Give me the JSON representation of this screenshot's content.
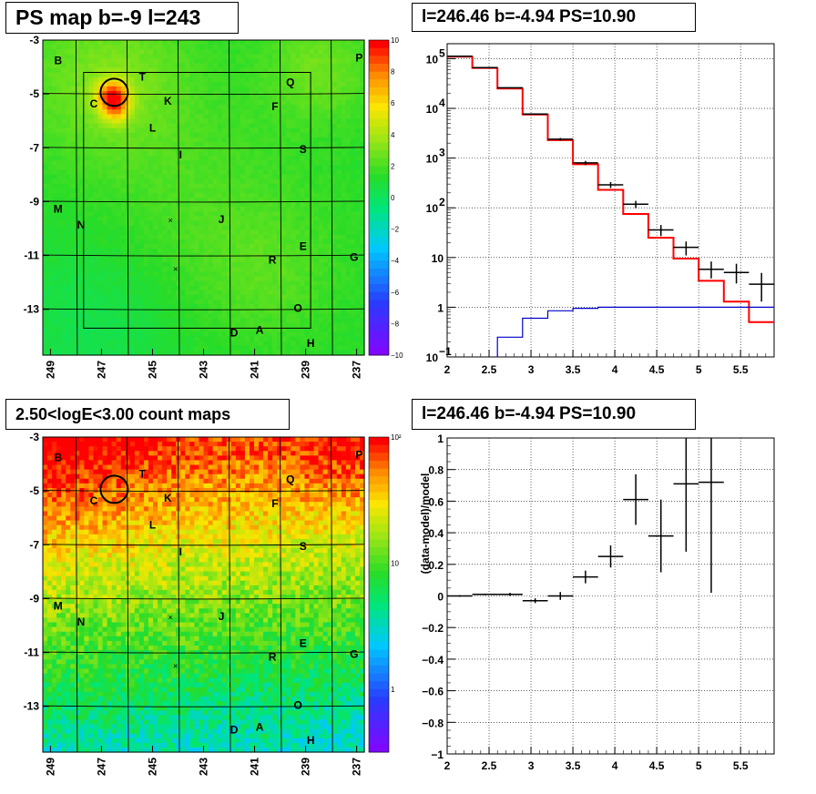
{
  "panels": {
    "tl": {
      "title": "PS map b=-9 l=243"
    },
    "tr": {
      "title": "l=246.46 b=-4.94 PS=10.90"
    },
    "bl": {
      "title": "2.50<logE<3.00 count maps"
    },
    "br": {
      "title": "l=246.46 b=-4.94 PS=10.90"
    }
  },
  "maps": {
    "x_ticks": [
      "249",
      "247",
      "245",
      "243",
      "241",
      "239",
      "237"
    ],
    "y_ticks": [
      "-3",
      "-5",
      "-7",
      "-9",
      "-11",
      "-13"
    ],
    "xlim": [
      249.3,
      236.7
    ],
    "ylim": [
      -14.7,
      -3
    ],
    "region_labels": [
      {
        "t": "B",
        "l": 248.7,
        "b": -3.9
      },
      {
        "t": "T",
        "l": 245.4,
        "b": -4.5
      },
      {
        "t": "P",
        "l": 236.9,
        "b": -3.8
      },
      {
        "t": "Q",
        "l": 239.6,
        "b": -4.7
      },
      {
        "t": "C",
        "l": 247.3,
        "b": -5.5
      },
      {
        "t": "K",
        "l": 244.4,
        "b": -5.4
      },
      {
        "t": "F",
        "l": 240.2,
        "b": -5.6
      },
      {
        "t": "L",
        "l": 245.0,
        "b": -6.4
      },
      {
        "t": "I",
        "l": 243.9,
        "b": -7.4
      },
      {
        "t": "S",
        "l": 239.1,
        "b": -7.2
      },
      {
        "t": "M",
        "l": 248.7,
        "b": -9.4
      },
      {
        "t": "N",
        "l": 247.8,
        "b": -10.0
      },
      {
        "t": "J",
        "l": 242.3,
        "b": -9.8
      },
      {
        "t": "E",
        "l": 239.1,
        "b": -10.8
      },
      {
        "t": "R",
        "l": 240.3,
        "b": -11.3
      },
      {
        "t": "G",
        "l": 237.1,
        "b": -11.2
      },
      {
        "t": "O",
        "l": 239.3,
        "b": -13.1
      },
      {
        "t": "D",
        "l": 241.8,
        "b": -14.0
      },
      {
        "t": "A",
        "l": 240.8,
        "b": -13.9
      },
      {
        "t": "H",
        "l": 238.8,
        "b": -14.4
      }
    ],
    "crosses": [
      {
        "l": 244.3,
        "b": -9.7
      },
      {
        "l": 244.1,
        "b": -11.5
      }
    ],
    "circle": {
      "l": 246.5,
      "b": -4.94
    }
  },
  "colorbar_ps": {
    "ticks": [
      "10",
      "8",
      "6",
      "4",
      "2",
      "0",
      "−2",
      "−4",
      "−6",
      "−8",
      "−10"
    ]
  },
  "colorbar_counts": {
    "ticks": [
      {
        "t": "10²",
        "v": 2
      },
      {
        "t": "10",
        "v": 1
      },
      {
        "t": "1",
        "v": 0
      }
    ]
  },
  "colors": {
    "model_red": "#ff0000",
    "model_blue": "#0000cc",
    "data": "#000000"
  },
  "chart_data": [
    {
      "type": "heatmap",
      "title": "PS map b=-9 l=243",
      "xlabel": "",
      "ylabel": "",
      "xlim": [
        249.3,
        236.7
      ],
      "ylim": [
        -14.7,
        -3
      ],
      "zlim": [
        -10,
        10
      ],
      "note": "smooth PS values mostly 0–3, hot spot ~8 near l=246.5 b=-5"
    },
    {
      "type": "line",
      "title": "l=246.46 b=-4.94 PS=10.90",
      "xlabel": "",
      "ylabel": "",
      "log_y": true,
      "xlim": [
        2,
        5.9
      ],
      "ylim": [
        0.1,
        200000
      ],
      "x_ticks": [
        "2",
        "2.5",
        "3",
        "3.5",
        "4",
        "4.5",
        "5",
        "5.5"
      ],
      "y_ticks": [
        "10^-1",
        "1",
        "10",
        "10^2",
        "10^3",
        "10^4",
        "10^5"
      ],
      "series": [
        {
          "kind": "step",
          "color": "#ff0000",
          "edges": [
            2,
            2.3,
            2.6,
            2.9,
            3.2,
            3.5,
            3.8,
            4.1,
            4.4,
            4.7,
            5.0,
            5.3,
            5.6,
            5.9
          ],
          "values": [
            110000,
            65000,
            25000,
            7500,
            2300,
            750,
            230,
            75,
            25,
            9.5,
            3.4,
            1.3,
            0.5
          ]
        },
        {
          "kind": "step",
          "color": "#0000cc",
          "edges": [
            2.6,
            2.9,
            3.2,
            3.5,
            3.8,
            5.9
          ],
          "values": [
            0.25,
            0.6,
            0.85,
            0.95,
            1.0
          ]
        },
        {
          "kind": "errorbars",
          "color": "#000000",
          "x": [
            2.15,
            2.45,
            2.75,
            3.05,
            3.35,
            3.65,
            3.95,
            4.25,
            4.55,
            4.85,
            5.15,
            5.45,
            5.75
          ],
          "xerr": 0.15,
          "y": [
            112000,
            66000,
            26000,
            7700,
            2400,
            800,
            290,
            118,
            36,
            16,
            5.8,
            5,
            2.9
          ],
          "yerr": [
            [
              1000,
              800,
              500,
              250,
              140,
              80,
              40,
              20,
              9,
              5,
              2,
              2,
              1.6
            ],
            [
              1000,
              800,
              500,
              250,
              140,
              80,
              40,
              20,
              9,
              5,
              2.5,
              2.5,
              2
            ]
          ]
        }
      ]
    },
    {
      "type": "heatmap",
      "title": "2.50<logE<3.00 count maps",
      "xlabel": "",
      "ylabel": "",
      "xlim": [
        249.3,
        236.7
      ],
      "ylim": [
        -14.7,
        -3
      ],
      "zlim": [
        1,
        100
      ],
      "log_z": true,
      "note": "counts highest at top (~100), decreasing toward bottom (~3-5)"
    },
    {
      "type": "scatter",
      "title": "l=246.46 b=-4.94 PS=10.90",
      "xlabel": "",
      "ylabel": "(data-model)/model",
      "xlim": [
        2,
        5.9
      ],
      "ylim": [
        -1,
        1
      ],
      "x_ticks": [
        "2",
        "2.5",
        "3",
        "3.5",
        "4",
        "4.5",
        "5",
        "5.5"
      ],
      "y_ticks": [
        "-1",
        "-0.8",
        "-0.6",
        "-0.4",
        "-0.2",
        "0",
        "0.2",
        "0.4",
        "0.6",
        "0.8",
        "1"
      ],
      "x": [
        2.15,
        2.45,
        2.75,
        3.05,
        3.35,
        3.65,
        3.95,
        4.25,
        4.55,
        4.85,
        5.15
      ],
      "xerr": 0.15,
      "y": [
        0.0,
        0.01,
        0.01,
        -0.03,
        0.0,
        0.12,
        0.25,
        0.61,
        0.38,
        0.71,
        0.72
      ],
      "yerr": [
        0.005,
        0.005,
        0.01,
        0.015,
        0.025,
        0.04,
        0.07,
        0.16,
        0.23,
        0.43,
        0.7
      ]
    }
  ]
}
